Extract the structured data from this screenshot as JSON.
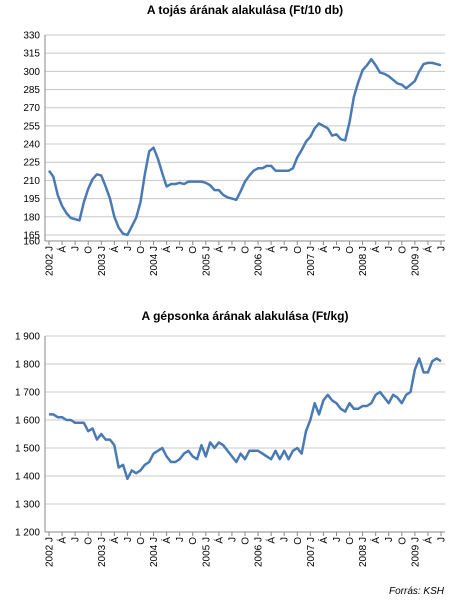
{
  "chart_data": [
    {
      "type": "line",
      "title": "A tojás árának alakulása (Ft/10 db)",
      "categories": [
        "2002 J",
        null,
        null,
        "Á",
        null,
        null,
        "J",
        null,
        null,
        "O",
        null,
        null,
        "2003 J",
        null,
        null,
        "Á",
        null,
        null,
        "J",
        null,
        null,
        "O",
        null,
        null,
        "2004 J",
        null,
        null,
        "Á",
        null,
        null,
        "J",
        null,
        null,
        "O",
        null,
        null,
        "2005 J",
        null,
        null,
        "Á",
        null,
        null,
        "J",
        null,
        null,
        "O",
        null,
        null,
        "2006 J",
        null,
        null,
        "Á",
        null,
        null,
        "J",
        null,
        null,
        "O",
        null,
        null,
        "2007 J",
        null,
        null,
        "Á",
        null,
        null,
        "J",
        null,
        null,
        "O",
        null,
        null,
        "2008 J",
        null,
        null,
        "Á",
        null,
        null,
        "J",
        null,
        null,
        "O",
        null,
        null,
        "2009 J",
        null,
        null,
        "Á",
        null,
        null,
        "J"
      ],
      "series": [
        {
          "color": "#4a7ab4",
          "values": [
            218,
            213,
            198,
            189,
            183,
            179,
            178,
            177,
            192,
            203,
            211,
            215,
            214,
            205,
            195,
            180,
            171,
            166,
            165,
            172,
            179,
            192,
            215,
            234,
            237,
            228,
            216,
            205,
            207,
            207,
            208,
            207,
            209,
            209,
            209,
            209,
            208,
            206,
            202,
            202,
            198,
            196,
            195,
            194,
            201,
            209,
            214,
            218,
            220,
            220,
            222,
            222,
            218,
            218,
            218,
            218,
            220,
            229,
            235,
            242,
            246,
            253,
            257,
            255,
            253,
            247,
            248,
            244,
            243,
            258,
            279,
            291,
            301,
            305,
            310,
            305,
            299,
            298,
            296,
            293,
            290,
            289,
            286,
            289,
            292,
            300,
            306,
            307,
            307,
            306,
            305
          ]
        }
      ],
      "ylim": [
        160,
        330
      ],
      "yticks": [
        160,
        165,
        180,
        195,
        210,
        225,
        240,
        255,
        270,
        285,
        300,
        315,
        330
      ],
      "grid": true
    },
    {
      "type": "line",
      "title": "A gépsonka árának alakulása (Ft/kg)",
      "categories": [
        "2002 J",
        null,
        null,
        "Á",
        null,
        null,
        "J",
        null,
        null,
        "O",
        null,
        null,
        "2003 J",
        null,
        null,
        "Á",
        null,
        null,
        "J",
        null,
        null,
        "O",
        null,
        null,
        "2004 J",
        null,
        null,
        "Á",
        null,
        null,
        "J",
        null,
        null,
        "O",
        null,
        null,
        "2005 J",
        null,
        null,
        "Á",
        null,
        null,
        "J",
        null,
        null,
        "O",
        null,
        null,
        "2006 J",
        null,
        null,
        "Á",
        null,
        null,
        "J",
        null,
        null,
        "O",
        null,
        null,
        "2007 J",
        null,
        null,
        "Á",
        null,
        null,
        "J",
        null,
        null,
        "O",
        null,
        null,
        "2008 J",
        null,
        null,
        "Á",
        null,
        null,
        "J",
        null,
        null,
        "O",
        null,
        null,
        "2009 J",
        null,
        null,
        "Á",
        null,
        null,
        "J"
      ],
      "series": [
        {
          "color": "#4a7ab4",
          "values": [
            1620,
            1620,
            1610,
            1610,
            1600,
            1600,
            1590,
            1590,
            1590,
            1560,
            1570,
            1530,
            1550,
            1530,
            1530,
            1510,
            1430,
            1440,
            1390,
            1420,
            1410,
            1420,
            1440,
            1450,
            1480,
            1490,
            1500,
            1470,
            1450,
            1450,
            1460,
            1480,
            1490,
            1470,
            1460,
            1510,
            1470,
            1520,
            1500,
            1520,
            1510,
            1490,
            1470,
            1450,
            1480,
            1460,
            1490,
            1490,
            1490,
            1480,
            1470,
            1460,
            1490,
            1460,
            1490,
            1460,
            1490,
            1500,
            1480,
            1560,
            1600,
            1660,
            1620,
            1670,
            1690,
            1670,
            1660,
            1640,
            1630,
            1660,
            1640,
            1640,
            1650,
            1650,
            1660,
            1690,
            1700,
            1680,
            1660,
            1690,
            1680,
            1660,
            1690,
            1700,
            1780,
            1820,
            1770,
            1770,
            1810,
            1820,
            1810
          ]
        }
      ],
      "ylim": [
        1200,
        1900
      ],
      "yticks": [
        {
          "value": 1200,
          "label": "1 200"
        },
        {
          "value": 1300,
          "label": "1 300"
        },
        {
          "value": 1400,
          "label": "1 400"
        },
        {
          "value": 1500,
          "label": "1 500"
        },
        {
          "value": 1600,
          "label": "1 600"
        },
        {
          "value": 1700,
          "label": "1 700"
        },
        {
          "value": 1800,
          "label": "1 800"
        },
        {
          "value": 1900,
          "label": "1 900"
        }
      ],
      "grid": true
    }
  ],
  "source": "Forrás: KSH"
}
